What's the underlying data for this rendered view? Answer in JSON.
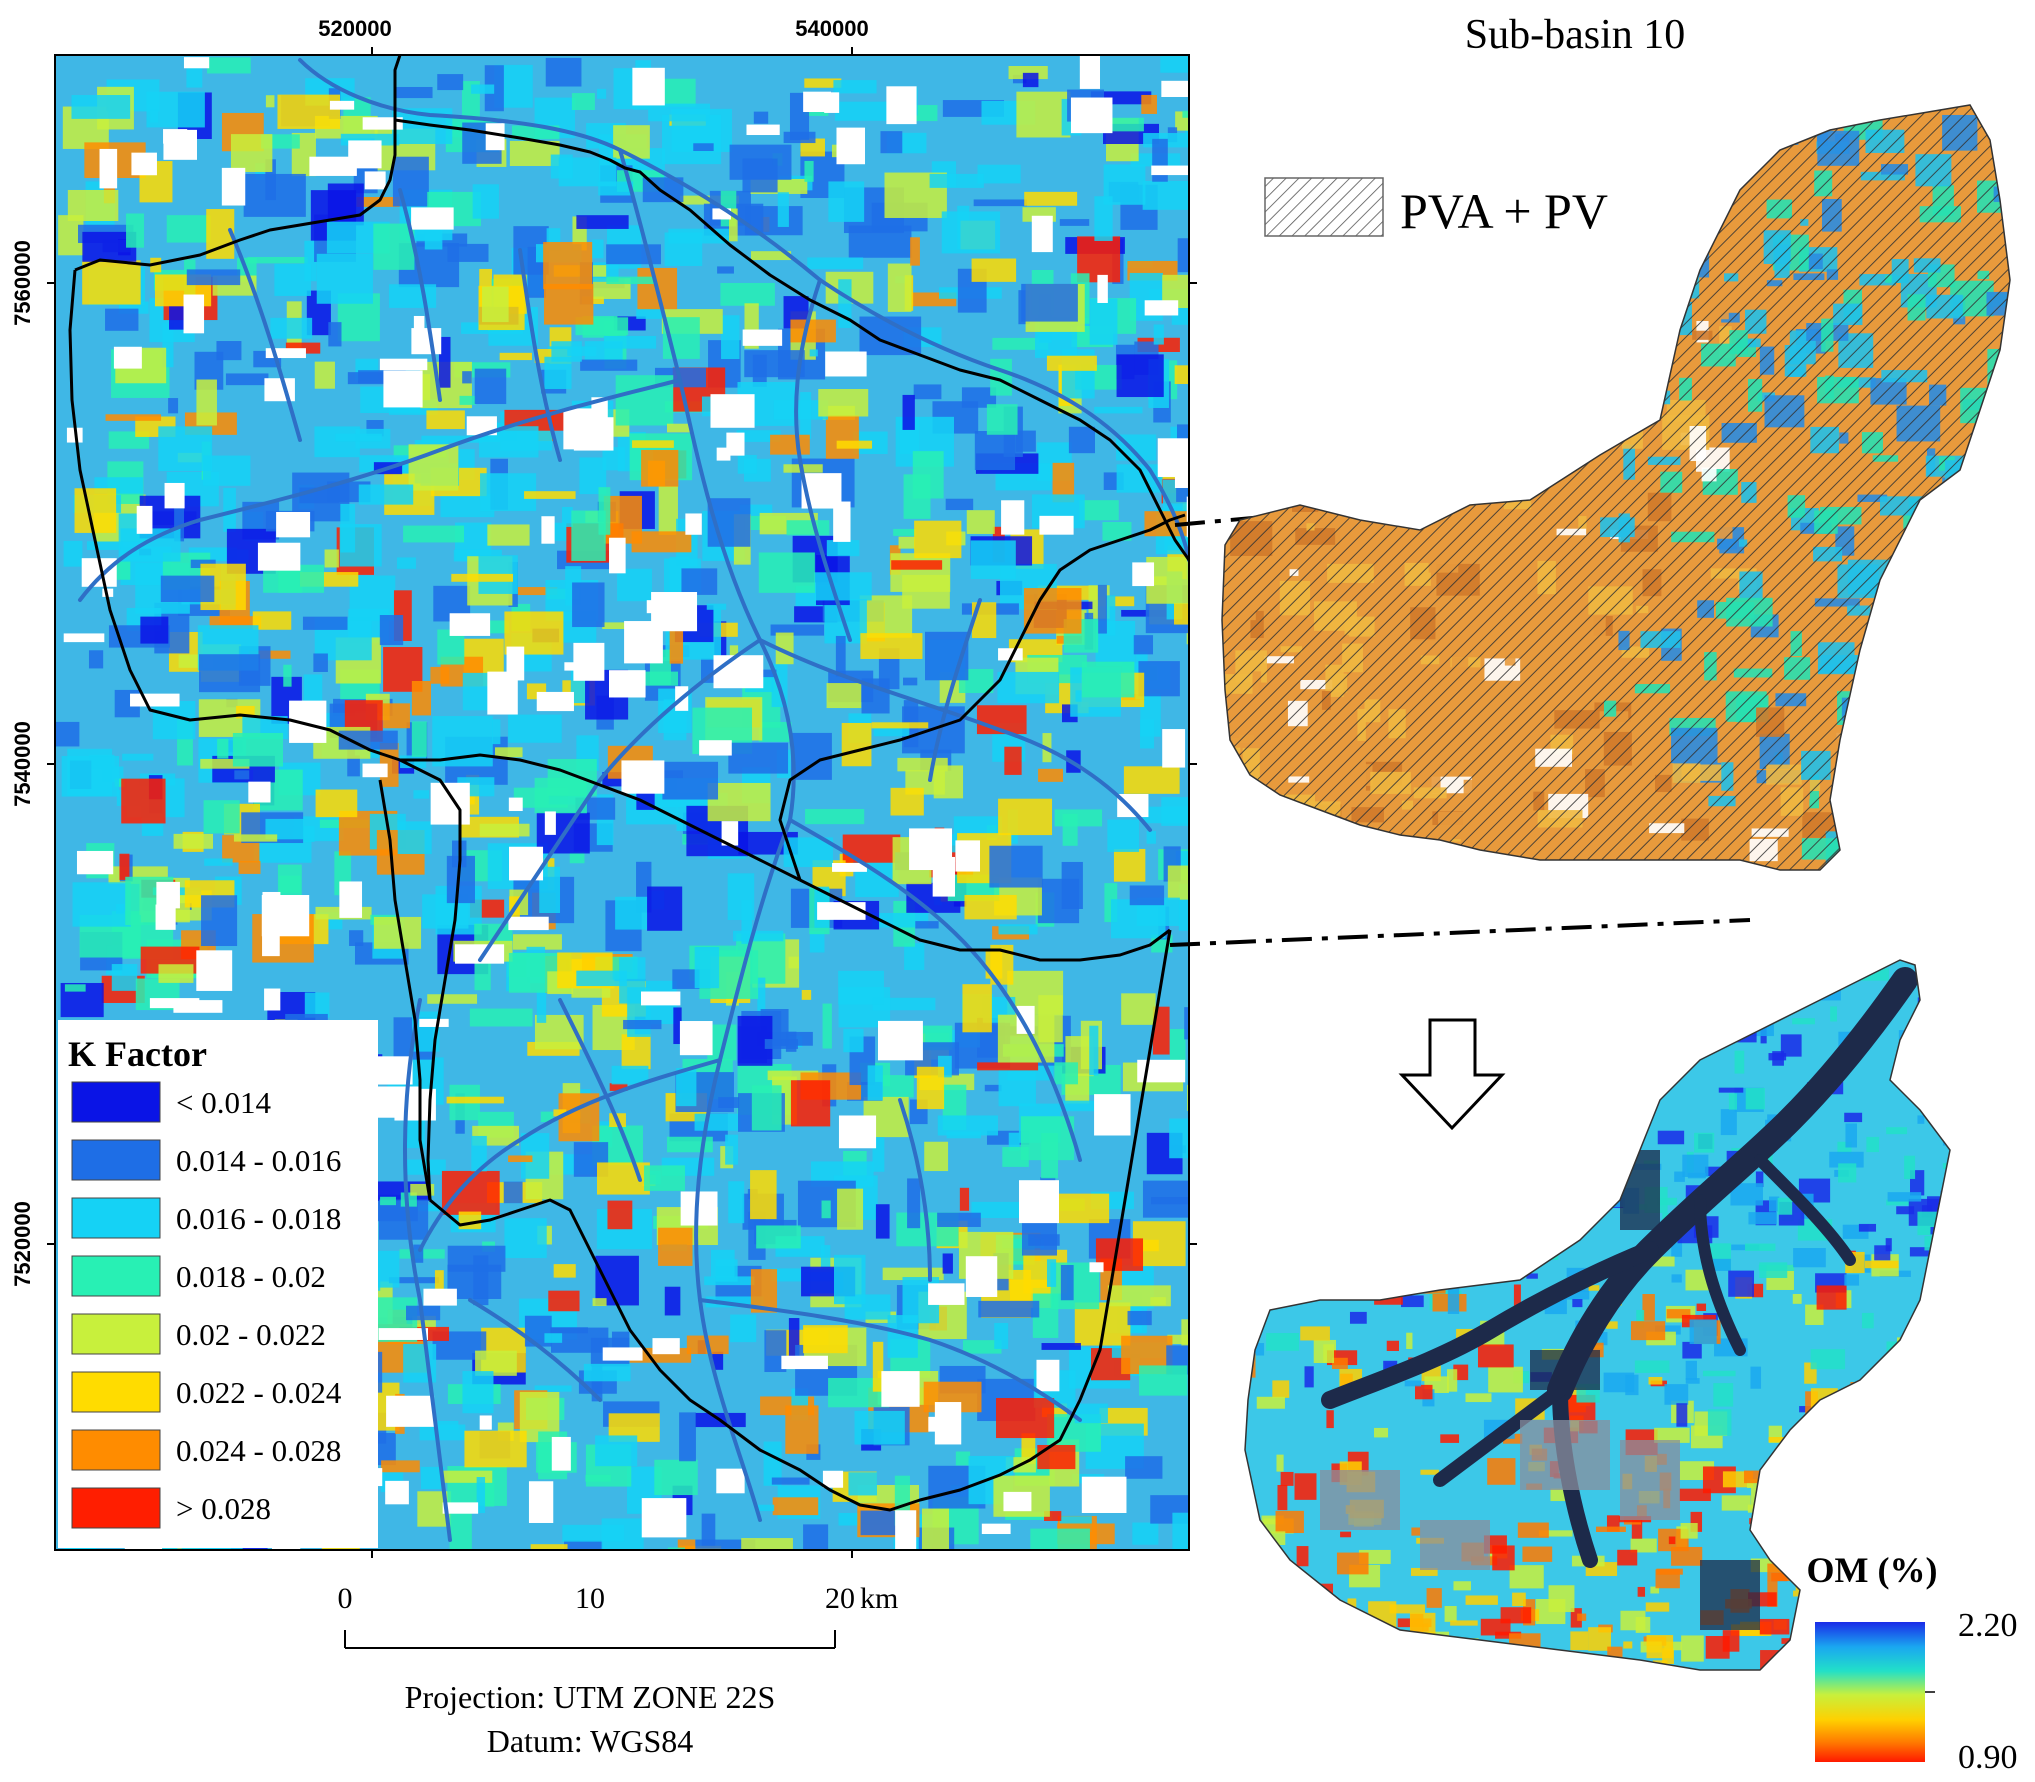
{
  "main_map": {
    "x_ticks": [
      "520000",
      "540000"
    ],
    "y_ticks": [
      "7560000",
      "7540000",
      "7520000"
    ],
    "colors": {
      "frame": "#000000",
      "background_fill": "#3fb7e6",
      "river": "#2f6fc6",
      "boundary": "#000000"
    }
  },
  "legend": {
    "title": "K Factor",
    "items": [
      {
        "label": "<  0.014",
        "color": "#0a14e6"
      },
      {
        "label": "0.014 - 0.016",
        "color": "#1e6ee6"
      },
      {
        "label": "0.016 - 0.018",
        "color": "#15d2f5"
      },
      {
        "label": "0.018 - 0.02",
        "color": "#28f0b4"
      },
      {
        "label": "0.02 - 0.022",
        "color": "#c8f03c"
      },
      {
        "label": "0.022 - 0.024",
        "color": "#ffdc00"
      },
      {
        "label": "0.024 - 0.028",
        "color": "#ff8c00"
      },
      {
        "label": "> 0.028",
        "color": "#ff1e00"
      }
    ]
  },
  "scale_bar": {
    "labels": [
      "0",
      "10",
      "20"
    ],
    "unit": "km"
  },
  "projection_text": "Projection: UTM ZONE 22S",
  "datum_text": "Datum: WGS84",
  "inset": {
    "title": "Sub-basin 10",
    "hatch_label": "PVA + PV",
    "colors": {
      "hatch": "#333333",
      "orange": "#e89a3c",
      "blue": "#2b8ce0"
    }
  },
  "om_legend": {
    "title": "OM (%)",
    "max_label": "2.20",
    "min_label": "0.90",
    "gradient": [
      "#1a2be8",
      "#1aa8f0",
      "#22e0c8",
      "#c8f03c",
      "#ffd000",
      "#ff7a00",
      "#ff1a00"
    ]
  }
}
